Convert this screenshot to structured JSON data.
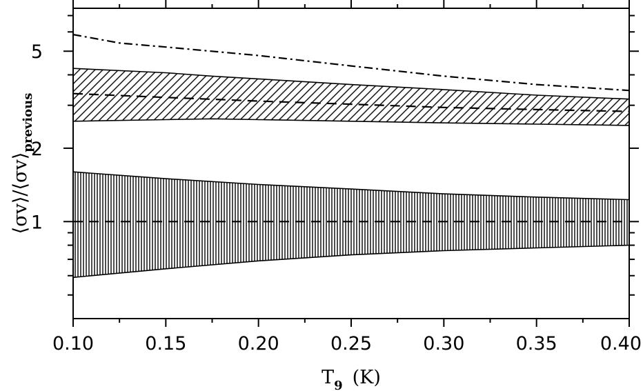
{
  "chart_data": {
    "type": "area",
    "title": "",
    "xlabel": "T",
    "xlabel_sub": "9",
    "xlabel_unit": "(K)",
    "ylabel": "⟨σv⟩/⟨σv⟩",
    "ylabel_sub": "previous",
    "xlim": [
      0.1,
      0.4
    ],
    "ylim": [
      0.4,
      7.5
    ],
    "yscale": "log",
    "grid": false,
    "legend": "none",
    "x_ticks": [
      0.1,
      0.15,
      0.2,
      0.25,
      0.3,
      0.35,
      0.4
    ],
    "x_tick_labels": [
      "0.10",
      "0.15",
      "0.20",
      "0.25",
      "0.30",
      "0.35",
      "0.40"
    ],
    "y_ticks": [
      1,
      2,
      5
    ],
    "y_tick_labels": [
      "1",
      "2",
      "5"
    ],
    "series": [
      {
        "kind": "band",
        "hatch": "vertical",
        "x": [
          0.1,
          0.15,
          0.2,
          0.25,
          0.3,
          0.35,
          0.4
        ],
        "upper": [
          1.6,
          1.5,
          1.42,
          1.36,
          1.3,
          1.26,
          1.23
        ],
        "lower": [
          0.59,
          0.64,
          0.69,
          0.73,
          0.76,
          0.78,
          0.8
        ]
      },
      {
        "kind": "line",
        "style": "dashed",
        "x": [
          0.1,
          0.4
        ],
        "y": [
          1.0,
          1.0
        ]
      },
      {
        "kind": "band",
        "hatch": "diagonal",
        "x": [
          0.1,
          0.15,
          0.175,
          0.2,
          0.25,
          0.3,
          0.35,
          0.4
        ],
        "upper": [
          4.25,
          4.08,
          3.95,
          3.85,
          3.65,
          3.48,
          3.3,
          3.18
        ],
        "lower": [
          2.58,
          2.62,
          2.64,
          2.62,
          2.58,
          2.54,
          2.51,
          2.48
        ]
      },
      {
        "kind": "line",
        "style": "dashed",
        "x": [
          0.1,
          0.15,
          0.2,
          0.25,
          0.3,
          0.35,
          0.4
        ],
        "y": [
          3.35,
          3.23,
          3.12,
          3.03,
          2.94,
          2.88,
          2.83
        ]
      },
      {
        "kind": "line",
        "style": "dashdot",
        "x": [
          0.1,
          0.125,
          0.15,
          0.2,
          0.25,
          0.3,
          0.35,
          0.4
        ],
        "y": [
          5.85,
          5.4,
          5.2,
          4.8,
          4.35,
          3.95,
          3.65,
          3.45
        ]
      }
    ]
  }
}
